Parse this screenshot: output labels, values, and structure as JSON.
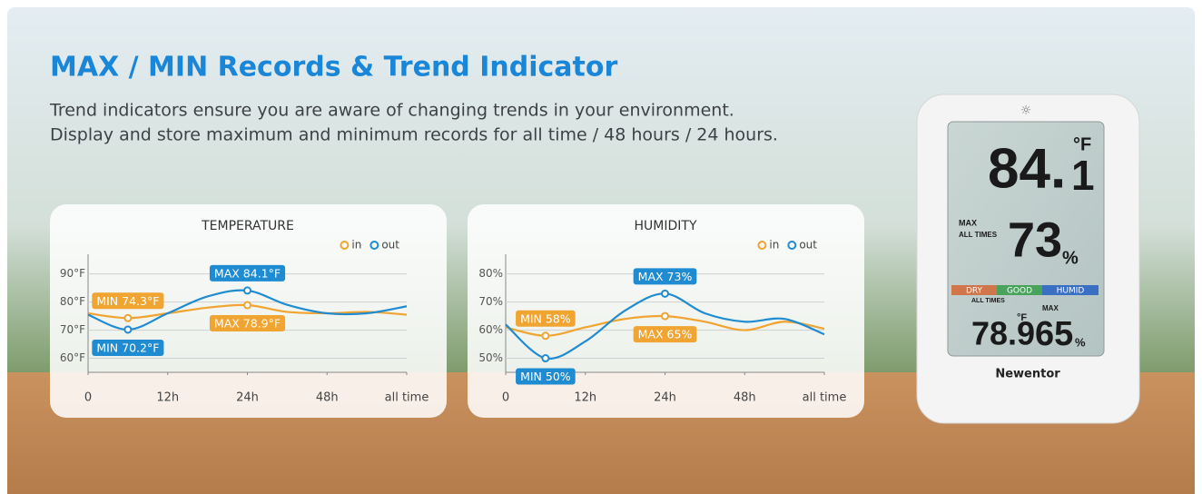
{
  "header": {
    "title": "MAX / MIN Records & Trend Indicator",
    "lines": [
      "Trend indicators ensure you are aware of changing trends in your environment.",
      "Display and store maximum and minimum records for all time / 48 hours / 24 hours."
    ]
  },
  "chart_data": [
    {
      "type": "line",
      "title": "TEMPERATURE",
      "x": [
        0,
        0.5,
        1,
        1.5,
        2,
        2.5,
        3,
        3.5,
        4
      ],
      "xlim": [
        0,
        4
      ],
      "xticks": [
        0,
        {
          "value": 1,
          "label": "12h"
        },
        {
          "value": 2,
          "label": "24h"
        },
        {
          "value": 3,
          "label": "48h"
        },
        {
          "value": 4,
          "label": "all time"
        }
      ],
      "ylim": [
        55,
        97
      ],
      "yticks": [
        {
          "value": 60,
          "label": "60°F"
        },
        {
          "value": 70,
          "label": "70°F"
        },
        {
          "value": 80,
          "label": "80°F"
        },
        {
          "value": 90,
          "label": "90°F"
        }
      ],
      "grid": true,
      "legend": "top-right",
      "series": [
        {
          "name": "in",
          "color": "#f0a431",
          "values": [
            76,
            74.3,
            76,
            78,
            78.9,
            76.5,
            76,
            76.5,
            75.5
          ],
          "value_labels": [
            null,
            "MIN 74.3°F",
            null,
            null,
            "MAX 78.9°F",
            null,
            null,
            null,
            null
          ]
        },
        {
          "name": "out",
          "color": "#1f8bd1",
          "values": [
            75.5,
            70.2,
            76,
            82,
            84.1,
            79,
            76,
            76,
            78.5
          ],
          "value_labels": [
            null,
            "MIN 70.2°F",
            null,
            null,
            "MAX 84.1°F",
            null,
            null,
            null,
            null
          ]
        }
      ]
    },
    {
      "type": "line",
      "title": "HUMIDITY",
      "x": [
        0,
        0.5,
        1,
        1.5,
        2,
        2.5,
        3,
        3.5,
        4
      ],
      "xlim": [
        0,
        4
      ],
      "xticks": [
        0,
        {
          "value": 1,
          "label": "12h"
        },
        {
          "value": 2,
          "label": "24h"
        },
        {
          "value": 3,
          "label": "48h"
        },
        {
          "value": 4,
          "label": "all time"
        }
      ],
      "ylim": [
        45,
        87
      ],
      "yticks": [
        {
          "value": 50,
          "label": "50%"
        },
        {
          "value": 60,
          "label": "60%"
        },
        {
          "value": 70,
          "label": "70%"
        },
        {
          "value": 80,
          "label": "80%"
        }
      ],
      "grid": true,
      "legend": "top-right",
      "series": [
        {
          "name": "in",
          "color": "#f0a431",
          "values": [
            61,
            58,
            61,
            64,
            65,
            63,
            60,
            63,
            60.5
          ],
          "value_labels": [
            null,
            "MIN 58%",
            null,
            null,
            "MAX 65%",
            null,
            null,
            null,
            null
          ]
        },
        {
          "name": "out",
          "color": "#1f8bd1",
          "values": [
            62,
            50,
            56,
            67,
            73,
            66,
            63,
            64,
            58.5
          ],
          "value_labels": [
            null,
            "MIN 50%",
            null,
            null,
            "MAX 73%",
            null,
            null,
            null,
            null
          ]
        }
      ]
    }
  ],
  "device": {
    "temp": "84.",
    "temp_dec": "1",
    "temp_unit": "°F",
    "max": "MAX",
    "all_times": "ALL TIMES",
    "hum": "73",
    "hum_unit": "%",
    "dry": "DRY",
    "good": "GOOD",
    "humid": "HUMID",
    "in_all_times": "ALL TIMES",
    "in_max": "MAX",
    "in_temp": "78.9",
    "in_temp_unit": "°F",
    "in_hum": "65",
    "in_hum_unit": "%",
    "brand": "Newentor"
  }
}
